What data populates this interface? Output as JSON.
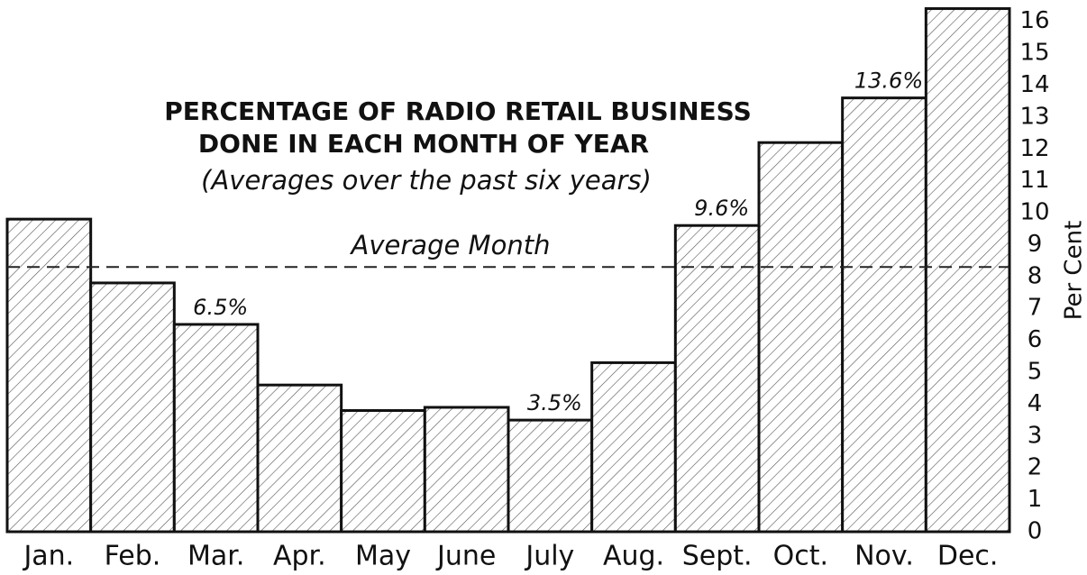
{
  "chart_data": {
    "type": "bar",
    "title": "PERCENTAGE OF RADIO RETAIL BUSINESS",
    "subtitle": "DONE IN EACH MONTH OF YEAR",
    "note": "(Averages over the past six years)",
    "y_label": "Per Cent",
    "categories": [
      "Jan.",
      "Feb.",
      "Mar.",
      "Apr.",
      "May",
      "June",
      "July",
      "Aug.",
      "Sept.",
      "Oct.",
      "Nov.",
      "Dec."
    ],
    "values": [
      9.8,
      7.8,
      6.5,
      4.6,
      3.8,
      3.9,
      3.5,
      5.3,
      9.6,
      12.2,
      13.6,
      16.4
    ],
    "value_labels": [
      null,
      null,
      "6.5%",
      null,
      null,
      null,
      "3.5%",
      null,
      "9.6%",
      null,
      "13.6%",
      null
    ],
    "reference_line": {
      "label": "Average Month",
      "value": 8.3
    },
    "color": "#111111",
    "ylim": [
      0,
      16.5
    ],
    "yticks": [
      0,
      1,
      2,
      3,
      4,
      5,
      6,
      7,
      8,
      9,
      10,
      11,
      12,
      13,
      14,
      15,
      16
    ],
    "grid": false
  }
}
